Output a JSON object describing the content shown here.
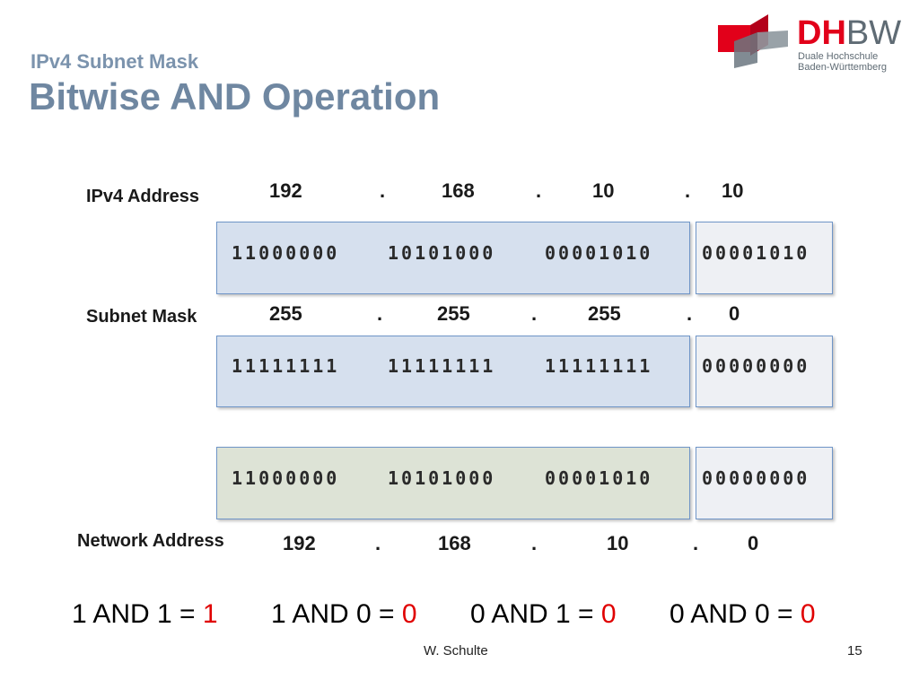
{
  "slide": {
    "subtitle": "IPv4 Subnet Mask",
    "title": "Bitwise AND Operation",
    "logo": {
      "name_red": "DH",
      "name_grey": "BW",
      "line1": "Duale Hochschule",
      "line2": "Baden-Württemberg",
      "colors": {
        "red": "#e2001a",
        "grey": "#5f6b74"
      }
    }
  },
  "rows": {
    "ipv4": {
      "label": "IPv4 Address",
      "octets": [
        "192",
        "168",
        "10",
        "10"
      ],
      "binary": [
        "11000000",
        "10101000",
        "00001010",
        "00001010"
      ]
    },
    "mask": {
      "label": "Subnet Mask",
      "octets": [
        "255",
        "255",
        "255",
        "0"
      ],
      "binary": [
        "11111111",
        "11111111",
        "11111111",
        "00000000"
      ]
    },
    "network": {
      "label": "Network Address",
      "octets": [
        "192",
        "168",
        "10",
        "0"
      ],
      "binary": [
        "11000000",
        "10101000",
        "00001010",
        "00000000"
      ]
    },
    "dot": "."
  },
  "rules": [
    {
      "expr": "1 AND 1 = ",
      "result": "1"
    },
    {
      "expr": "1 AND 0 = ",
      "result": "0"
    },
    {
      "expr": "0 AND 1 = ",
      "result": "0"
    },
    {
      "expr": "0 AND 0 = ",
      "result": "0"
    }
  ],
  "footer": {
    "author": "W. Schulte",
    "page": "15"
  }
}
